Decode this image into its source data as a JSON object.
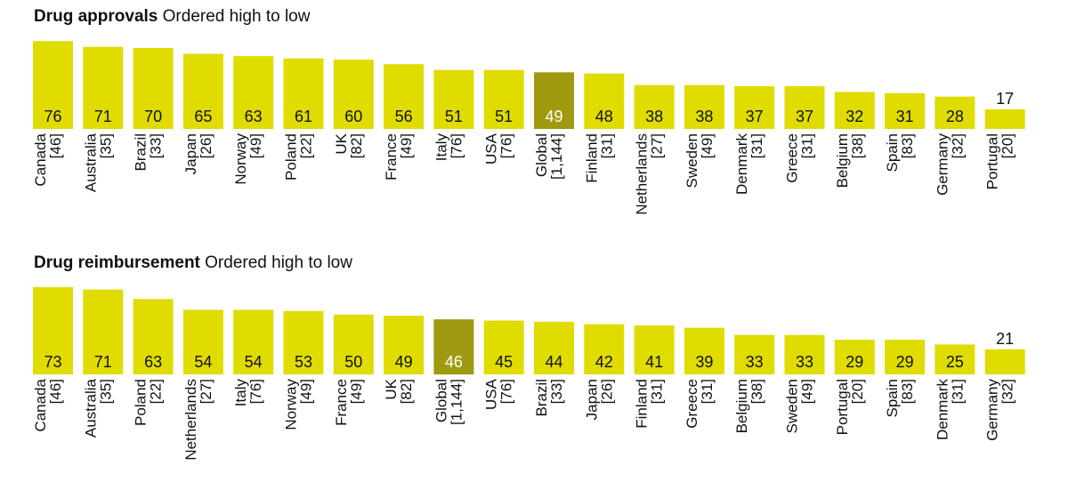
{
  "colors": {
    "bar": "#e0dc00",
    "highlight": "#a09a10",
    "highlight_text": "#ffffff",
    "text": "#111111"
  },
  "chart_data": [
    {
      "type": "bar",
      "title": "Drug approvals",
      "subtitle": "Ordered high to low",
      "highlight": "Global",
      "categories": [
        "Canada",
        "Australia",
        "Brazil",
        "Japan",
        "Norway",
        "Poland",
        "UK",
        "France",
        "Italy",
        "USA",
        "Global",
        "Finland",
        "Netherlands",
        "Sweden",
        "Denmark",
        "Greece",
        "Belgium",
        "Spain",
        "Germany",
        "Portugal"
      ],
      "counts": [
        "[46]",
        "[35]",
        "[33]",
        "[26]",
        "[49]",
        "[22]",
        "[82]",
        "[49]",
        "[76]",
        "[76]",
        "[1,144]",
        "[31]",
        "[27]",
        "[49]",
        "[31]",
        "[31]",
        "[38]",
        "[83]",
        "[32]",
        "[20]"
      ],
      "values": [
        76,
        71,
        70,
        65,
        63,
        61,
        60,
        56,
        51,
        51,
        49,
        48,
        38,
        38,
        37,
        37,
        32,
        31,
        28,
        17
      ]
    },
    {
      "type": "bar",
      "title": "Drug reimbursement",
      "subtitle": "Ordered high to low",
      "highlight": "Global",
      "categories": [
        "Canada",
        "Australia",
        "Poland",
        "Netherlands",
        "Italy",
        "Norway",
        "France",
        "UK",
        "Global",
        "USA",
        "Brazil",
        "Japan",
        "Finland",
        "Greece",
        "Belgium",
        "Sweden",
        "Portugal",
        "Spain",
        "Denmark",
        "Germany"
      ],
      "counts": [
        "[46]",
        "[35]",
        "[22]",
        "[27]",
        "[76]",
        "[49]",
        "[49]",
        "[82]",
        "[1,144]",
        "[76]",
        "[33]",
        "[26]",
        "[31]",
        "[31]",
        "[38]",
        "[49]",
        "[20]",
        "[83]",
        "[31]",
        "[32]"
      ],
      "values": [
        73,
        71,
        63,
        54,
        54,
        53,
        50,
        49,
        46,
        45,
        44,
        42,
        41,
        39,
        33,
        33,
        29,
        29,
        25,
        21
      ]
    }
  ]
}
